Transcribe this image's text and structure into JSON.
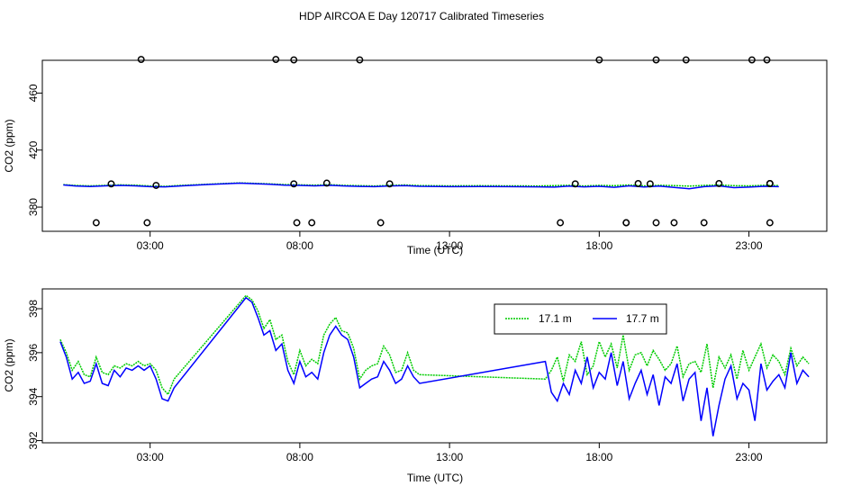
{
  "title": "HDP AIRCOA E  Day 120717  Calibrated Timeseries",
  "chart_data": [
    {
      "type": "line",
      "xlabel": "Time (UTC)",
      "ylabel": "CO2 (ppm)",
      "xlim": [
        -0.6,
        25.6
      ],
      "ylim": [
        363,
        483
      ],
      "x_ticks": [
        {
          "value": 3,
          "label": "03:00"
        },
        {
          "value": 8,
          "label": "08:00"
        },
        {
          "value": 13,
          "label": "13:00"
        },
        {
          "value": 18,
          "label": "18:00"
        },
        {
          "value": 23,
          "label": "23:00"
        }
      ],
      "y_ticks": [
        {
          "value": 380,
          "label": "380"
        },
        {
          "value": 420,
          "label": "420"
        },
        {
          "value": 460,
          "label": "460"
        }
      ],
      "series": [
        {
          "color": "#00cc00",
          "x": [
            0.1,
            0.5,
            1,
            1.5,
            2,
            2.5,
            3,
            3.5,
            4,
            5,
            6,
            7,
            7.5,
            8,
            8.5,
            9,
            9.5,
            10,
            10.5,
            11,
            11.5,
            12,
            13,
            14,
            15,
            16,
            16.5,
            17,
            17.5,
            18,
            18.5,
            19,
            19.5,
            20,
            20.5,
            21,
            21.5,
            22,
            22.5,
            23,
            23.5,
            24
          ],
          "y": [
            395.8,
            395.2,
            394.9,
            395.3,
            395.6,
            395.4,
            394.8,
            394.6,
            395.2,
            396.1,
            397.0,
            396.3,
            395.8,
            395.6,
            395.4,
            395.7,
            395.2,
            395.0,
            394.8,
            395.2,
            395.5,
            395.1,
            394.9,
            395.0,
            394.9,
            394.8,
            395.1,
            395.3,
            394.8,
            395.2,
            395.0,
            395.5,
            394.9,
            395.3,
            395.1,
            394.7,
            395.2,
            395.5,
            395.0,
            394.9,
            395.3,
            395.1
          ]
        },
        {
          "color": "#0000ff",
          "x": [
            0.1,
            0.5,
            1,
            1.5,
            2,
            2.5,
            3,
            3.5,
            4,
            5,
            6,
            7,
            7.5,
            8,
            8.5,
            9,
            9.5,
            10,
            10.5,
            11,
            11.5,
            12,
            13,
            14,
            15,
            16,
            16.5,
            17,
            17.5,
            18,
            18.5,
            19,
            19.5,
            20,
            20.5,
            21,
            21.5,
            22,
            22.5,
            23,
            23.5,
            24
          ],
          "y": [
            395.5,
            394.8,
            394.4,
            394.9,
            395.2,
            394.9,
            394.3,
            394.2,
            394.8,
            395.9,
            396.8,
            396.0,
            395.4,
            395.2,
            394.9,
            395.3,
            394.8,
            394.5,
            394.3,
            394.8,
            395.1,
            394.6,
            394.3,
            394.4,
            394.3,
            394.2,
            394.0,
            394.7,
            394.2,
            394.6,
            393.9,
            394.9,
            394.1,
            394.7,
            393.8,
            392.9,
            394.3,
            394.9,
            393.6,
            394.0,
            394.6,
            394.3
          ]
        }
      ],
      "points": {
        "marker": "open-circle",
        "x": [
          1.2,
          1.7,
          2.7,
          2.9,
          3.2,
          7.2,
          7.8,
          7.8,
          7.9,
          8.4,
          8.9,
          10.0,
          10.7,
          11.0,
          16.7,
          17.2,
          18.0,
          18.9,
          18.9,
          19.3,
          19.7,
          19.9,
          19.9,
          20.5,
          20.9,
          21.5,
          22.0,
          23.1,
          23.6,
          23.7,
          23.7,
          23.7
        ],
        "y": [
          369.0,
          396.3,
          483.6,
          369.0,
          395.2,
          483.6,
          396.3,
          483.3,
          369.0,
          369.0,
          396.8,
          483.3,
          369.0,
          396.3,
          369.0,
          396.3,
          483.3,
          369.0,
          369.0,
          396.5,
          396.3,
          369.0,
          483.3,
          369.0,
          483.3,
          369.0,
          396.5,
          483.3,
          483.3,
          369.0,
          396.5,
          396.5
        ]
      }
    },
    {
      "type": "line",
      "xlabel": "Time (UTC)",
      "ylabel": "CO2 (ppm)",
      "xlim": [
        -0.6,
        25.6
      ],
      "ylim": [
        391.9,
        398.9
      ],
      "x_ticks": [
        {
          "value": 3,
          "label": "03:00"
        },
        {
          "value": 8,
          "label": "08:00"
        },
        {
          "value": 13,
          "label": "13:00"
        },
        {
          "value": 18,
          "label": "18:00"
        },
        {
          "value": 23,
          "label": "23:00"
        }
      ],
      "y_ticks": [
        {
          "value": 392,
          "label": "392"
        },
        {
          "value": 394,
          "label": "394"
        },
        {
          "value": 396,
          "label": "396"
        },
        {
          "value": 398,
          "label": "398"
        }
      ],
      "legend": {
        "position": "top-right"
      },
      "series": [
        {
          "name": "17.1 m",
          "color": "#00cc00",
          "x": [
            0.0,
            0.2,
            0.4,
            0.6,
            0.8,
            1.0,
            1.2,
            1.4,
            1.6,
            1.8,
            2.0,
            2.2,
            2.4,
            2.6,
            2.8,
            3.0,
            3.2,
            3.4,
            3.6,
            3.8,
            6.2,
            6.4,
            6.6,
            6.8,
            7.0,
            7.2,
            7.4,
            7.6,
            7.8,
            8.0,
            8.2,
            8.4,
            8.6,
            8.8,
            9.0,
            9.2,
            9.4,
            9.6,
            9.8,
            10.0,
            10.2,
            10.4,
            10.6,
            10.8,
            11.0,
            11.2,
            11.4,
            11.6,
            11.8,
            12.0,
            16.2,
            16.4,
            16.6,
            16.8,
            17.0,
            17.2,
            17.4,
            17.6,
            17.8,
            18.0,
            18.2,
            18.4,
            18.6,
            18.8,
            19.0,
            19.2,
            19.4,
            19.6,
            19.8,
            20.0,
            20.2,
            20.4,
            20.6,
            20.8,
            21.0,
            21.2,
            21.4,
            21.6,
            21.8,
            22.0,
            22.2,
            22.4,
            22.6,
            22.8,
            23.0,
            23.2,
            23.4,
            23.6,
            23.8,
            24.0,
            24.2,
            24.4,
            24.6,
            24.8,
            25.0
          ],
          "y": [
            396.6,
            396.0,
            395.2,
            395.6,
            395.0,
            394.9,
            395.8,
            395.1,
            395.0,
            395.4,
            395.3,
            395.5,
            395.4,
            395.6,
            395.4,
            395.5,
            395.2,
            394.4,
            394.1,
            394.8,
            398.6,
            398.4,
            397.9,
            397.1,
            397.5,
            396.6,
            396.8,
            395.6,
            395.0,
            396.1,
            395.4,
            395.7,
            395.5,
            396.8,
            397.3,
            397.6,
            397.0,
            396.9,
            396.2,
            394.8,
            395.2,
            395.4,
            395.5,
            396.3,
            395.9,
            395.1,
            395.2,
            396.0,
            395.2,
            395.0,
            394.8,
            395.2,
            395.8,
            394.7,
            395.9,
            395.6,
            396.5,
            395.0,
            395.4,
            396.5,
            395.8,
            396.4,
            395.3,
            396.8,
            395.2,
            395.9,
            396.0,
            395.4,
            396.1,
            395.7,
            395.2,
            395.5,
            396.3,
            394.9,
            395.5,
            395.6,
            395.1,
            396.4,
            394.4,
            395.8,
            395.3,
            395.9,
            394.8,
            396.1,
            395.2,
            395.8,
            396.4,
            395.3,
            395.9,
            395.6,
            395.0,
            396.2,
            395.4,
            395.8,
            395.5
          ]
        },
        {
          "name": "17.7 m",
          "color": "#0000ff",
          "x": [
            0.0,
            0.2,
            0.4,
            0.6,
            0.8,
            1.0,
            1.2,
            1.4,
            1.6,
            1.8,
            2.0,
            2.2,
            2.4,
            2.6,
            2.8,
            3.0,
            3.2,
            3.4,
            3.6,
            3.8,
            6.2,
            6.4,
            6.6,
            6.8,
            7.0,
            7.2,
            7.4,
            7.6,
            7.8,
            8.0,
            8.2,
            8.4,
            8.6,
            8.8,
            9.0,
            9.2,
            9.4,
            9.6,
            9.8,
            10.0,
            10.2,
            10.4,
            10.6,
            10.8,
            11.0,
            11.2,
            11.4,
            11.6,
            11.8,
            12.0,
            16.2,
            16.4,
            16.6,
            16.8,
            17.0,
            17.2,
            17.4,
            17.6,
            17.8,
            18.0,
            18.2,
            18.4,
            18.6,
            18.8,
            19.0,
            19.2,
            19.4,
            19.6,
            19.8,
            20.0,
            20.2,
            20.4,
            20.6,
            20.8,
            21.0,
            21.2,
            21.4,
            21.6,
            21.8,
            22.0,
            22.2,
            22.4,
            22.6,
            22.8,
            23.0,
            23.2,
            23.4,
            23.6,
            23.8,
            24.0,
            24.2,
            24.4,
            24.6,
            24.8,
            25.0
          ],
          "y": [
            396.5,
            395.8,
            394.8,
            395.1,
            394.6,
            394.7,
            395.5,
            394.6,
            394.5,
            395.2,
            394.9,
            395.3,
            395.2,
            395.4,
            395.2,
            395.4,
            394.8,
            393.9,
            393.8,
            394.4,
            398.5,
            398.3,
            397.6,
            396.8,
            397.0,
            396.1,
            396.4,
            395.2,
            394.6,
            395.6,
            394.9,
            395.1,
            394.8,
            396.0,
            396.8,
            397.2,
            396.8,
            396.6,
            395.8,
            394.4,
            394.6,
            394.8,
            394.9,
            395.6,
            395.2,
            394.6,
            394.8,
            395.4,
            394.9,
            394.6,
            395.6,
            394.2,
            393.8,
            394.6,
            394.1,
            395.2,
            394.6,
            395.8,
            394.4,
            395.1,
            394.8,
            396.0,
            394.5,
            395.6,
            393.9,
            394.6,
            395.2,
            394.1,
            395.0,
            393.6,
            394.9,
            394.6,
            395.5,
            393.8,
            394.8,
            395.1,
            392.9,
            394.4,
            392.2,
            393.6,
            394.8,
            395.4,
            393.9,
            394.6,
            394.3,
            392.9,
            395.5,
            394.3,
            394.7,
            395.0,
            394.4,
            396.0,
            394.6,
            395.2,
            394.9
          ]
        }
      ]
    }
  ]
}
